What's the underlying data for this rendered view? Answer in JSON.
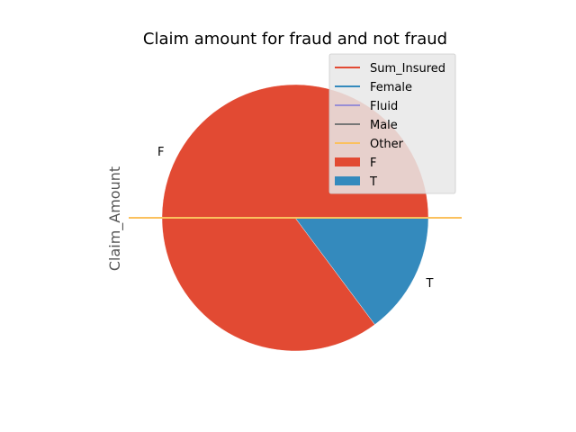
{
  "chart_data": {
    "type": "pie",
    "title": "Claim amount for fraud and not fraud",
    "ylabel": "Claim_Amount",
    "categories": [
      "F",
      "T"
    ],
    "values": [
      85.2,
      14.8
    ],
    "colors": {
      "F": "#E24A33",
      "T": "#348ABD"
    },
    "legend": {
      "placement": "top-right",
      "entries": [
        {
          "label": "Sum_Insured",
          "kind": "line",
          "color": "#E24A33"
        },
        {
          "label": "Female",
          "kind": "line",
          "color": "#348ABD"
        },
        {
          "label": "Fluid",
          "kind": "line",
          "color": "#988ED5"
        },
        {
          "label": "Male",
          "kind": "line",
          "color": "#777777"
        },
        {
          "label": "Other",
          "kind": "line",
          "color": "#FBC15E"
        },
        {
          "label": "F",
          "kind": "patch",
          "color": "#E24A33"
        },
        {
          "label": "T",
          "kind": "patch",
          "color": "#348ABD"
        }
      ]
    },
    "overlay_lines": [
      {
        "name": "Sum_Insured",
        "color": "#E24A33"
      },
      {
        "name": "Female",
        "color": "#348ABD"
      },
      {
        "name": "Fluid",
        "color": "#988ED5"
      },
      {
        "name": "Male",
        "color": "#777777"
      },
      {
        "name": "Other",
        "color": "#FBC15E"
      }
    ]
  }
}
